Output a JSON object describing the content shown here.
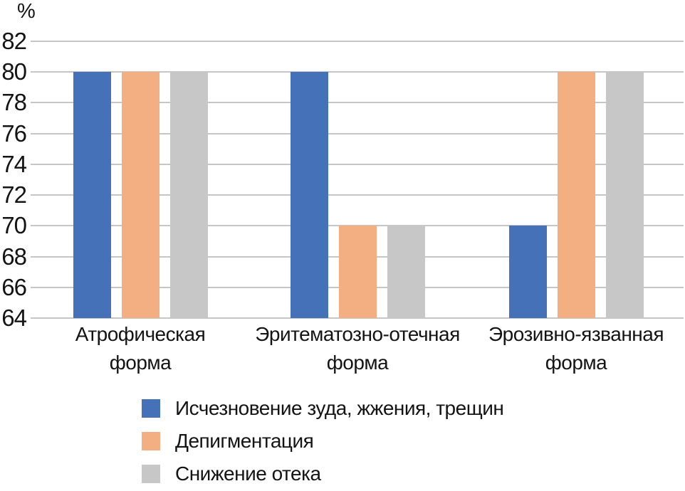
{
  "chart_data": {
    "type": "bar",
    "title": "",
    "ylabel": "%",
    "xlabel": "",
    "categories": [
      {
        "lines": [
          "Атрофическая",
          "форма"
        ]
      },
      {
        "lines": [
          "Эритематозно-отечная",
          "форма"
        ]
      },
      {
        "lines": [
          "Эрозивно-язванная",
          "форма"
        ]
      }
    ],
    "series": [
      {
        "name": "Исчезновение зуда, жжения, трещин",
        "color": "#4571B8",
        "values": [
          80,
          80,
          70
        ]
      },
      {
        "name": "Депигментация",
        "color": "#F3AF82",
        "values": [
          80,
          70,
          80
        ]
      },
      {
        "name": "Снижение отека",
        "color": "#C7C7C7",
        "values": [
          80,
          70,
          80
        ]
      }
    ],
    "yticks": [
      82,
      80,
      78,
      76,
      74,
      72,
      70,
      68,
      66,
      64
    ],
    "ylim": [
      64,
      82
    ],
    "grid": true,
    "legend_position": "bottom",
    "gridline_color": "#C6C6C6",
    "background_color": "#FFFFFF",
    "text_color": "#141414"
  }
}
